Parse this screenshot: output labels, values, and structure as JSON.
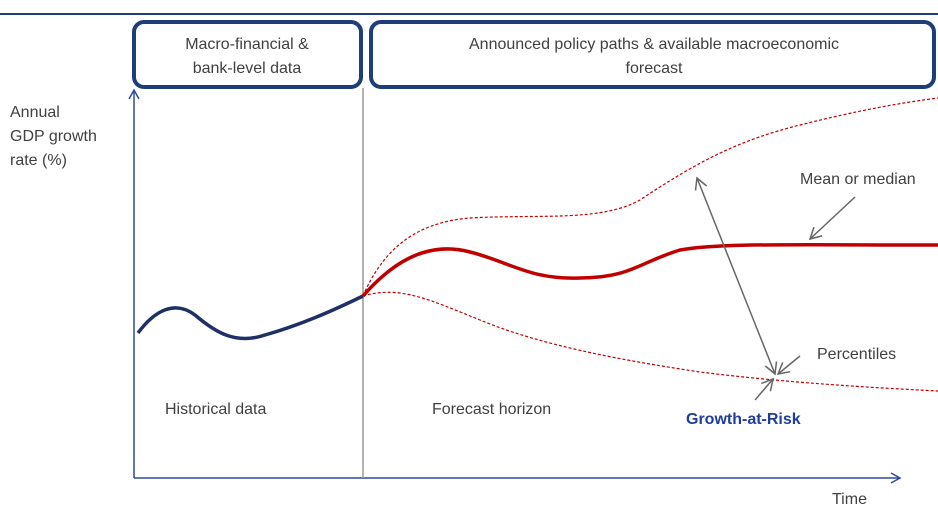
{
  "boxes": [
    {
      "lines": [
        "Macro-financial &",
        "bank-level data"
      ]
    },
    {
      "lines": [
        "Announced policy paths & available macroeconomic",
        "forecast"
      ]
    }
  ],
  "y_axis_label": [
    "Annual",
    "GDP growth",
    "rate (%)"
  ],
  "x_axis_label": "Time",
  "annotations": {
    "mean": "Mean or median",
    "percentiles": "Percentiles",
    "historical": "Historical data",
    "forecast": "Forecast horizon",
    "gar": "Growth-at-Risk"
  }
}
